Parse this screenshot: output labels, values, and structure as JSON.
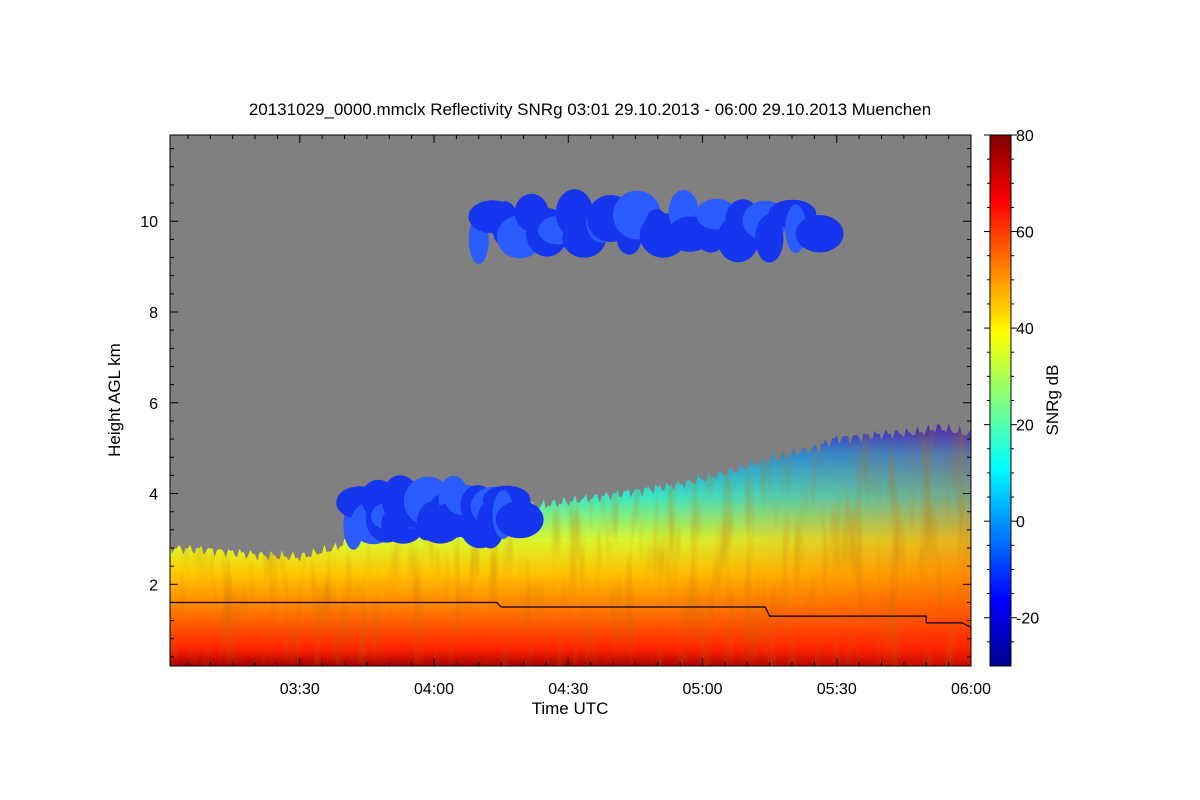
{
  "chart_data": {
    "type": "heatmap",
    "title": "20131029_0000.mmclx Reflectivity SNRg   03:01 29.10.2013 - 06:00 29.10.2013 Muenchen",
    "xlabel": "Time UTC",
    "ylabel": "Height AGL km",
    "x_unit": "minutes after 03:00 UTC",
    "xlim": [
      1,
      180
    ],
    "ylim": [
      0.2,
      11.9
    ],
    "x_ticks": [
      {
        "label": "03:30",
        "value": 30
      },
      {
        "label": "04:00",
        "value": 60
      },
      {
        "label": "04:30",
        "value": 90
      },
      {
        "label": "05:00",
        "value": 120
      },
      {
        "label": "05:30",
        "value": 150
      },
      {
        "label": "06:00",
        "value": 180
      }
    ],
    "y_ticks": [
      {
        "label": "2",
        "value": 2
      },
      {
        "label": "4",
        "value": 4
      },
      {
        "label": "6",
        "value": 6
      },
      {
        "label": "8",
        "value": 8
      },
      {
        "label": "10",
        "value": 10
      }
    ],
    "colorbar": {
      "label": "SNRg dB",
      "range": [
        -30,
        80
      ],
      "ticks": [
        {
          "label": "-20",
          "value": -20
        },
        {
          "label": "0",
          "value": 0
        },
        {
          "label": "20",
          "value": 20
        },
        {
          "label": "40",
          "value": 40
        },
        {
          "label": "60",
          "value": 60
        },
        {
          "label": "80",
          "value": 80
        }
      ],
      "colormap": "jet"
    },
    "background_no_signal_color": "#808080",
    "echo_top_km": [
      [
        1,
        2.8
      ],
      [
        10,
        2.75
      ],
      [
        20,
        2.65
      ],
      [
        30,
        2.6
      ],
      [
        38,
        2.8
      ],
      [
        45,
        3.2
      ],
      [
        55,
        3.35
      ],
      [
        65,
        3.5
      ],
      [
        75,
        3.6
      ],
      [
        85,
        3.75
      ],
      [
        95,
        3.9
      ],
      [
        105,
        4.05
      ],
      [
        115,
        4.2
      ],
      [
        125,
        4.45
      ],
      [
        135,
        4.75
      ],
      [
        145,
        5.0
      ],
      [
        150,
        5.2
      ],
      [
        160,
        5.3
      ],
      [
        168,
        5.35
      ],
      [
        173,
        5.45
      ],
      [
        180,
        5.3
      ]
    ],
    "upper_cloud": {
      "time_range": [
        70,
        145
      ],
      "height_range_km": [
        9.3,
        10.5
      ],
      "snr_db": -12
    },
    "mid_cloud": {
      "time_range": [
        42,
        78
      ],
      "height_range_km": [
        3.0,
        4.2
      ],
      "snr_db": -14
    },
    "boundary_line": {
      "color": "#000000",
      "points": [
        [
          1,
          1.6
        ],
        [
          74,
          1.6
        ],
        [
          75,
          1.5
        ],
        [
          134,
          1.5
        ],
        [
          135,
          1.3
        ],
        [
          170,
          1.3
        ],
        [
          170,
          1.15
        ],
        [
          178,
          1.15
        ],
        [
          180,
          1.05
        ]
      ]
    }
  }
}
